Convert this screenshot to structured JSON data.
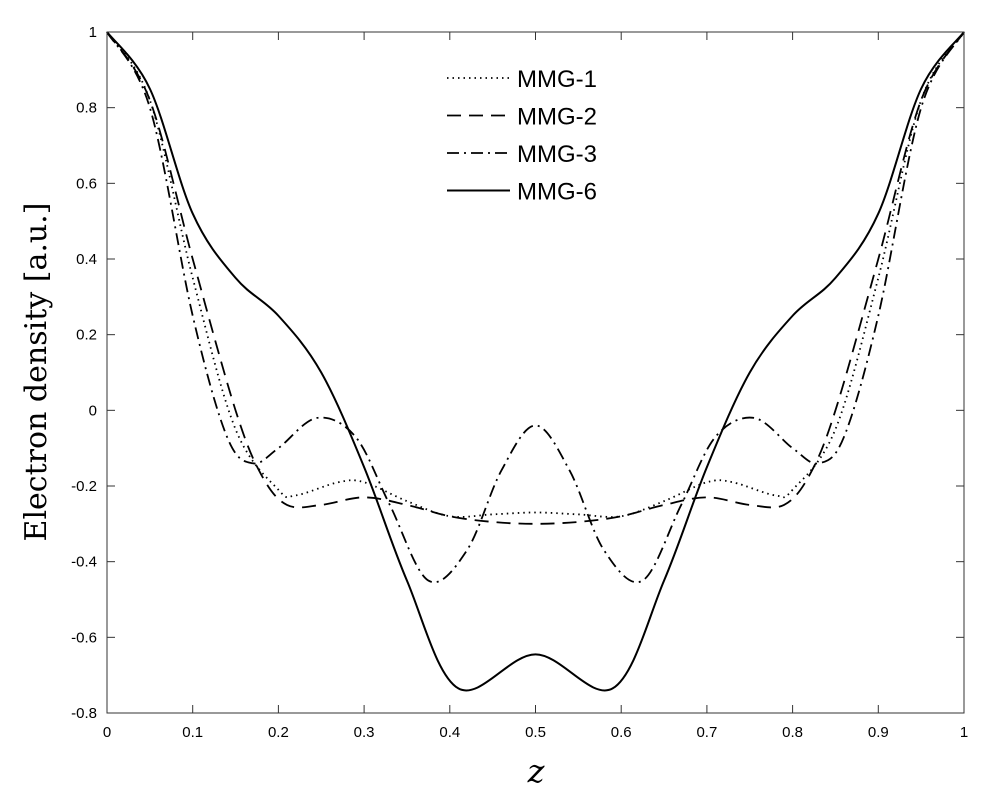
{
  "chart_data": {
    "type": "line",
    "title": "",
    "xlabel": "z",
    "ylabel": "Electron density [a.u.]",
    "xlim": [
      0,
      1
    ],
    "ylim": [
      -0.8,
      1
    ],
    "xticks": [
      "0",
      "0.1",
      "0.2",
      "0.3",
      "0.4",
      "0.5",
      "0.6",
      "0.7",
      "0.8",
      "0.9",
      "1"
    ],
    "yticks": [
      "-0.8",
      "-0.6",
      "-0.4",
      "-0.2",
      "0",
      "0.2",
      "0.4",
      "0.6",
      "0.8",
      "1"
    ],
    "grid": false,
    "legend_position": "top-center",
    "series": [
      {
        "name": "MMG-1",
        "style": "dotted",
        "x": [
          0,
          0.05,
          0.1,
          0.15,
          0.2,
          0.22,
          0.27,
          0.3,
          0.35,
          0.4,
          0.45,
          0.5,
          0.55,
          0.6,
          0.65,
          0.7,
          0.73,
          0.78,
          0.8,
          0.85,
          0.9,
          0.95,
          1
        ],
        "y": [
          1,
          0.82,
          0.35,
          -0.05,
          -0.21,
          -0.225,
          -0.19,
          -0.19,
          -0.24,
          -0.28,
          -0.275,
          -0.27,
          -0.275,
          -0.28,
          -0.24,
          -0.19,
          -0.19,
          -0.225,
          -0.21,
          -0.05,
          0.35,
          0.82,
          1
        ]
      },
      {
        "name": "MMG-2",
        "style": "dashed",
        "x": [
          0,
          0.05,
          0.1,
          0.15,
          0.18,
          0.21,
          0.25,
          0.3,
          0.35,
          0.4,
          0.45,
          0.5,
          0.55,
          0.6,
          0.65,
          0.7,
          0.75,
          0.79,
          0.82,
          0.85,
          0.9,
          0.95,
          1
        ],
        "y": [
          1,
          0.82,
          0.4,
          0,
          -0.17,
          -0.25,
          -0.25,
          -0.23,
          -0.25,
          -0.28,
          -0.295,
          -0.3,
          -0.295,
          -0.28,
          -0.25,
          -0.23,
          -0.25,
          -0.25,
          -0.17,
          0,
          0.4,
          0.82,
          1
        ]
      },
      {
        "name": "MMG-3",
        "style": "dashdot",
        "x": [
          0,
          0.05,
          0.1,
          0.14,
          0.17,
          0.2,
          0.245,
          0.29,
          0.33,
          0.375,
          0.42,
          0.46,
          0.5,
          0.54,
          0.58,
          0.625,
          0.67,
          0.71,
          0.755,
          0.8,
          0.83,
          0.86,
          0.9,
          0.95,
          1
        ],
        "y": [
          1,
          0.8,
          0.25,
          -0.07,
          -0.14,
          -0.1,
          -0.02,
          -0.07,
          -0.25,
          -0.45,
          -0.37,
          -0.16,
          -0.04,
          -0.16,
          -0.37,
          -0.45,
          -0.25,
          -0.07,
          -0.02,
          -0.1,
          -0.14,
          -0.07,
          0.25,
          0.8,
          1
        ]
      },
      {
        "name": "MMG-6",
        "style": "solid",
        "x": [
          0,
          0.05,
          0.1,
          0.15,
          0.2,
          0.25,
          0.3,
          0.35,
          0.41,
          0.5,
          0.59,
          0.65,
          0.7,
          0.75,
          0.8,
          0.85,
          0.9,
          0.95,
          1
        ],
        "y": [
          1,
          0.85,
          0.52,
          0.35,
          0.25,
          0.1,
          -0.15,
          -0.45,
          -0.735,
          -0.645,
          -0.735,
          -0.45,
          -0.15,
          0.1,
          0.25,
          0.35,
          0.52,
          0.85,
          1
        ]
      }
    ]
  }
}
